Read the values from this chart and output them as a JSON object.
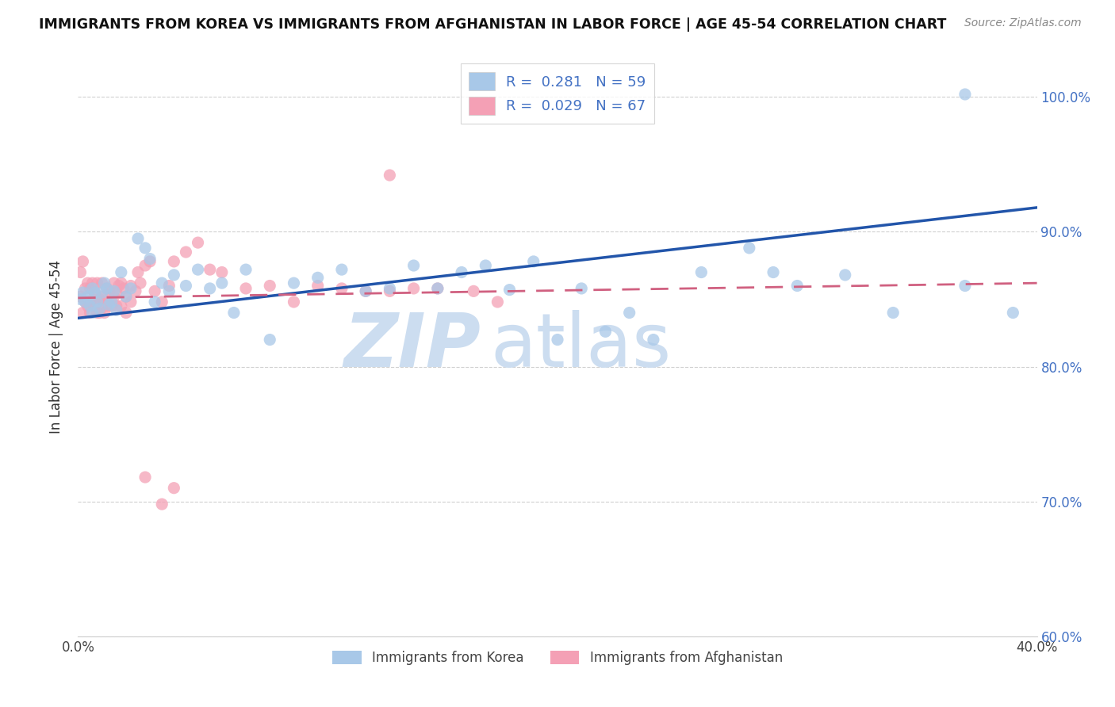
{
  "title": "IMMIGRANTS FROM KOREA VS IMMIGRANTS FROM AFGHANISTAN IN LABOR FORCE | AGE 45-54 CORRELATION CHART",
  "source": "Source: ZipAtlas.com",
  "ylabel": "In Labor Force | Age 45-54",
  "xlim": [
    0.0,
    0.4
  ],
  "ylim": [
    0.6,
    1.03
  ],
  "yticks": [
    0.6,
    0.7,
    0.8,
    0.9,
    1.0
  ],
  "ytick_labels": [
    "60.0%",
    "70.0%",
    "80.0%",
    "90.0%",
    "100.0%"
  ],
  "xticks": [
    0.0,
    0.05,
    0.1,
    0.15,
    0.2,
    0.25,
    0.3,
    0.35,
    0.4
  ],
  "xtick_labels": [
    "0.0%",
    "",
    "",
    "",
    "",
    "",
    "",
    "",
    "40.0%"
  ],
  "korea_R": 0.281,
  "korea_N": 59,
  "afghan_R": 0.029,
  "afghan_N": 67,
  "korea_color": "#a8c8e8",
  "korea_line_color": "#2255aa",
  "afghan_color": "#f4a0b5",
  "afghan_line_color": "#d06080",
  "korea_line_x0": 0.0,
  "korea_line_x1": 0.4,
  "korea_line_y0": 0.836,
  "korea_line_y1": 0.918,
  "afghan_line_x0": 0.0,
  "afghan_line_x1": 0.4,
  "afghan_line_y0": 0.851,
  "afghan_line_y1": 0.862,
  "watermark_zip_color": "#ccddf0",
  "watermark_atlas_color": "#ccddf0",
  "legend_top_label1": "R =  0.281   N = 59",
  "legend_top_label2": "R =  0.029   N = 67",
  "legend_bot_label1": "Immigrants from Korea",
  "legend_bot_label2": "Immigrants from Afghanistan",
  "korea_x": [
    0.001,
    0.002,
    0.003,
    0.004,
    0.005,
    0.006,
    0.006,
    0.007,
    0.008,
    0.009,
    0.01,
    0.011,
    0.012,
    0.013,
    0.014,
    0.015,
    0.016,
    0.018,
    0.02,
    0.022,
    0.025,
    0.028,
    0.03,
    0.032,
    0.035,
    0.038,
    0.04,
    0.045,
    0.05,
    0.055,
    0.06,
    0.065,
    0.07,
    0.08,
    0.09,
    0.1,
    0.11,
    0.12,
    0.13,
    0.14,
    0.15,
    0.16,
    0.17,
    0.18,
    0.19,
    0.2,
    0.21,
    0.22,
    0.23,
    0.24,
    0.26,
    0.28,
    0.29,
    0.3,
    0.32,
    0.34,
    0.37,
    0.39,
    0.37
  ],
  "korea_y": [
    0.85,
    0.855,
    0.848,
    0.852,
    0.845,
    0.858,
    0.84,
    0.855,
    0.848,
    0.843,
    0.855,
    0.862,
    0.858,
    0.846,
    0.848,
    0.856,
    0.842,
    0.87,
    0.852,
    0.858,
    0.895,
    0.888,
    0.88,
    0.848,
    0.862,
    0.856,
    0.868,
    0.86,
    0.872,
    0.858,
    0.862,
    0.84,
    0.872,
    0.82,
    0.862,
    0.866,
    0.872,
    0.856,
    0.858,
    0.875,
    0.858,
    0.87,
    0.875,
    0.857,
    0.878,
    0.82,
    0.858,
    0.826,
    0.84,
    0.82,
    0.87,
    0.888,
    0.87,
    0.86,
    0.868,
    0.84,
    0.86,
    0.84,
    1.002
  ],
  "afghan_x": [
    0.001,
    0.001,
    0.002,
    0.002,
    0.003,
    0.003,
    0.004,
    0.004,
    0.005,
    0.005,
    0.005,
    0.006,
    0.006,
    0.007,
    0.007,
    0.008,
    0.008,
    0.009,
    0.009,
    0.01,
    0.01,
    0.011,
    0.011,
    0.012,
    0.012,
    0.013,
    0.014,
    0.015,
    0.015,
    0.016,
    0.016,
    0.017,
    0.018,
    0.018,
    0.019,
    0.02,
    0.02,
    0.022,
    0.022,
    0.024,
    0.025,
    0.026,
    0.028,
    0.03,
    0.032,
    0.035,
    0.038,
    0.04,
    0.045,
    0.05,
    0.055,
    0.06,
    0.07,
    0.08,
    0.09,
    0.1,
    0.11,
    0.12,
    0.13,
    0.14,
    0.15,
    0.165,
    0.175,
    0.13,
    0.028,
    0.035,
    0.04
  ],
  "afghan_y": [
    0.852,
    0.87,
    0.878,
    0.84,
    0.848,
    0.858,
    0.845,
    0.862,
    0.84,
    0.848,
    0.858,
    0.85,
    0.862,
    0.855,
    0.845,
    0.84,
    0.862,
    0.85,
    0.84,
    0.852,
    0.862,
    0.848,
    0.84,
    0.858,
    0.845,
    0.856,
    0.845,
    0.852,
    0.862,
    0.855,
    0.845,
    0.86,
    0.862,
    0.845,
    0.858,
    0.84,
    0.852,
    0.86,
    0.848,
    0.856,
    0.87,
    0.862,
    0.875,
    0.878,
    0.856,
    0.848,
    0.86,
    0.878,
    0.885,
    0.892,
    0.872,
    0.87,
    0.858,
    0.86,
    0.848,
    0.86,
    0.858,
    0.856,
    0.856,
    0.858,
    0.858,
    0.856,
    0.848,
    0.942,
    0.718,
    0.698,
    0.71
  ]
}
